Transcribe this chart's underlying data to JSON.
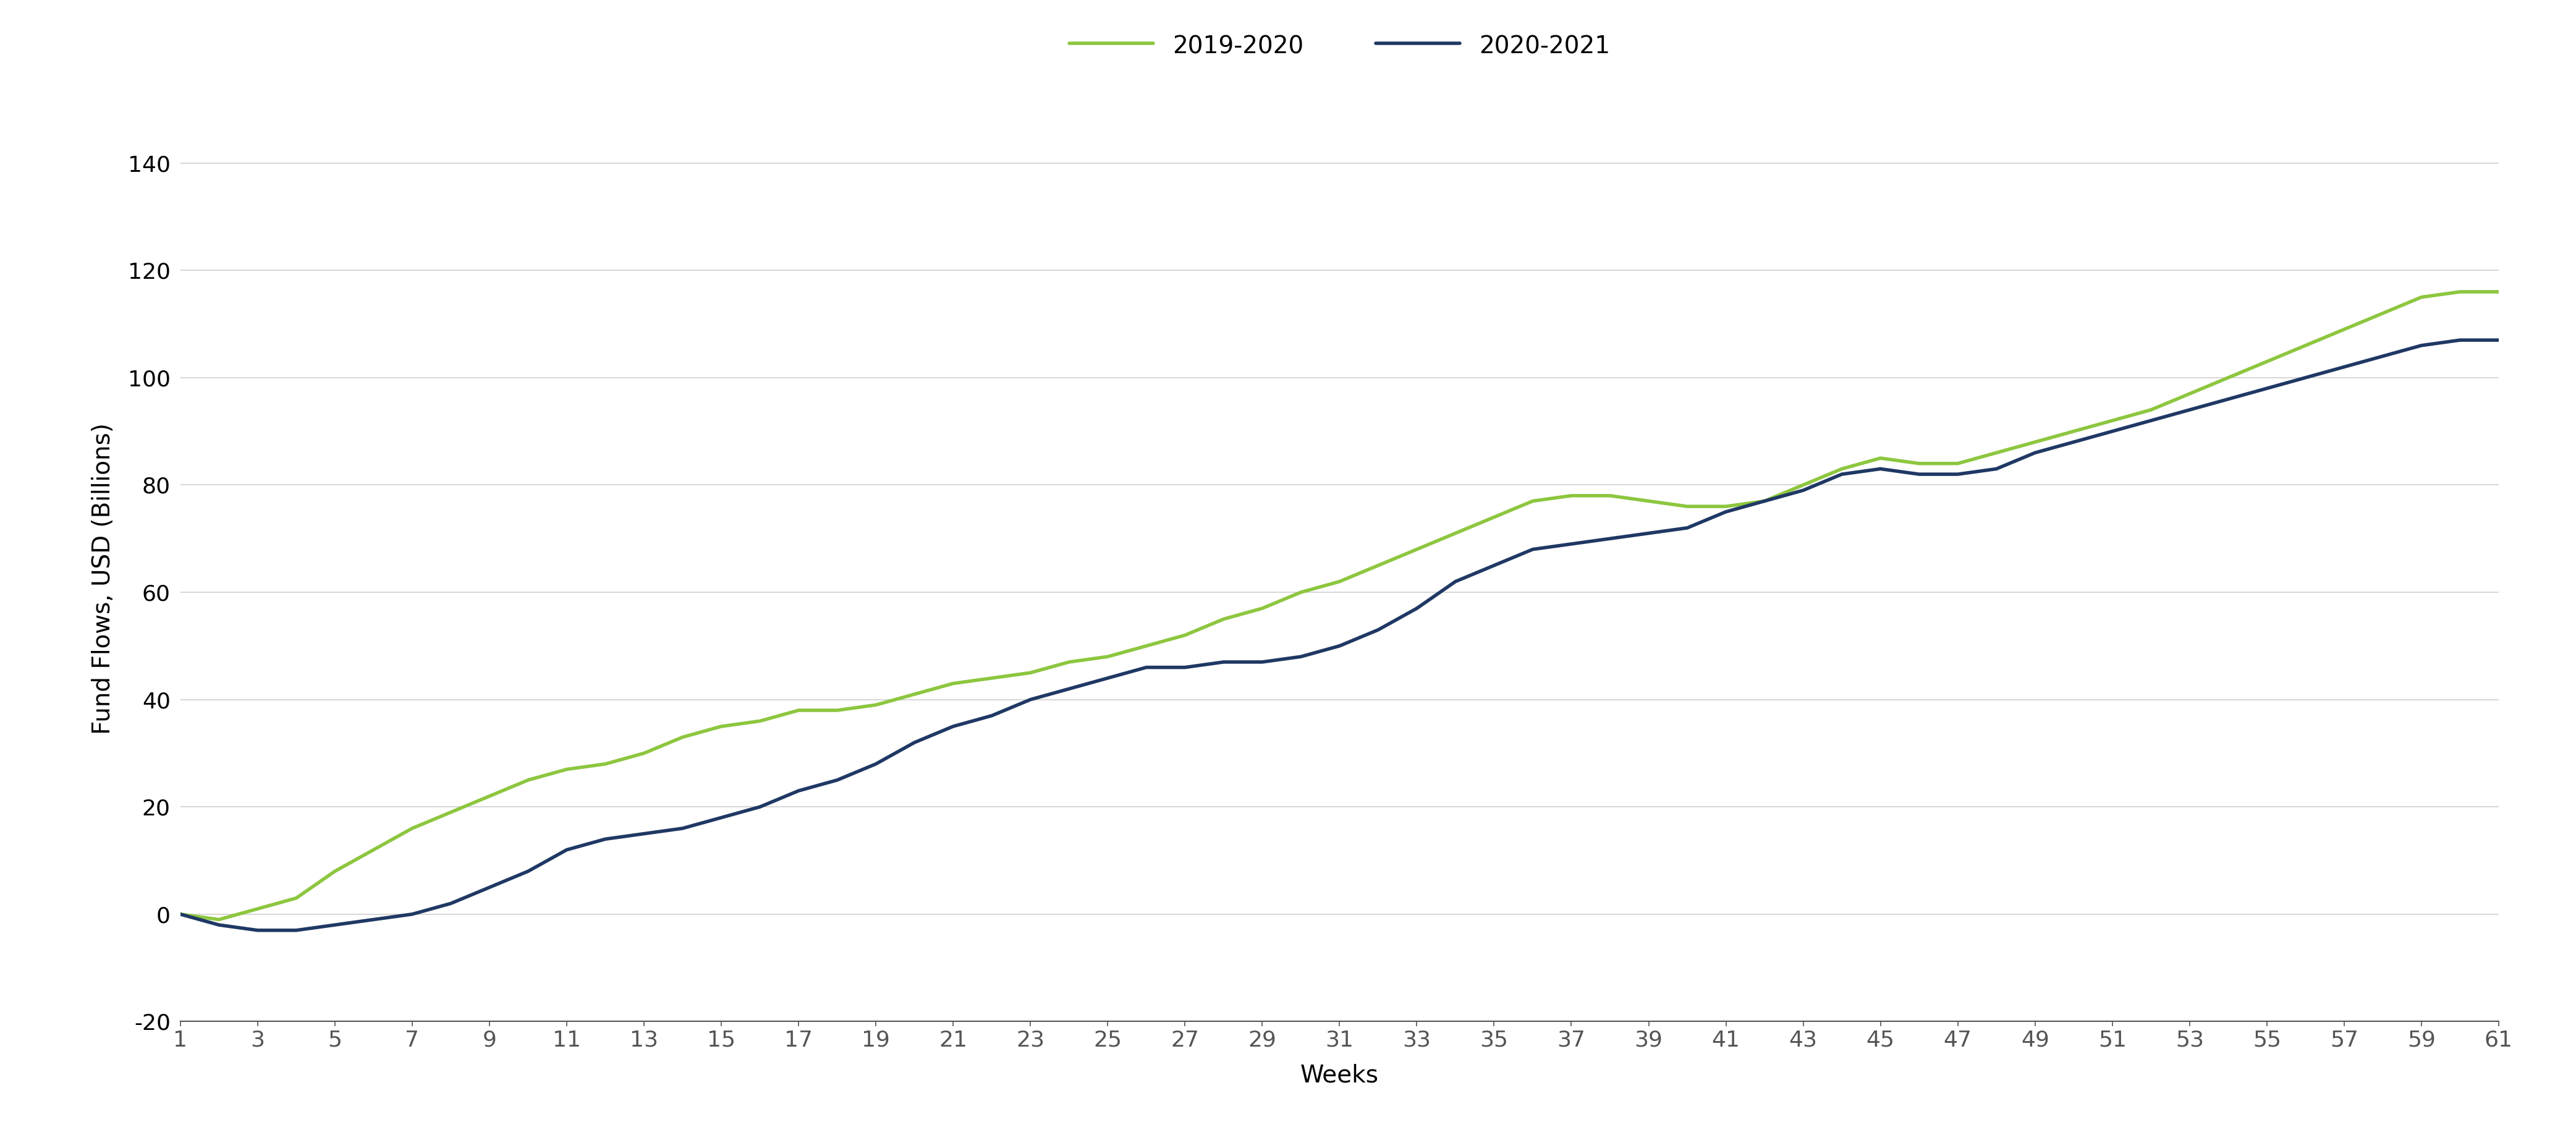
{
  "series_2019_2020": [
    0,
    -1,
    1,
    3,
    8,
    12,
    16,
    19,
    22,
    25,
    27,
    28,
    30,
    33,
    35,
    36,
    38,
    38,
    39,
    41,
    43,
    44,
    45,
    47,
    48,
    50,
    52,
    55,
    57,
    60,
    62,
    65,
    68,
    71,
    74,
    77,
    78,
    78,
    77,
    76,
    76,
    77,
    80,
    83,
    85,
    84,
    84,
    86,
    88,
    90,
    92,
    94,
    97,
    100,
    103,
    106,
    109,
    112,
    115,
    116,
    116
  ],
  "series_2020_2021": [
    0,
    -2,
    -3,
    -3,
    -2,
    -1,
    0,
    2,
    5,
    8,
    12,
    14,
    15,
    16,
    18,
    20,
    23,
    25,
    28,
    32,
    35,
    37,
    40,
    42,
    44,
    46,
    46,
    47,
    47,
    48,
    50,
    53,
    57,
    62,
    65,
    68,
    69,
    70,
    71,
    72,
    75,
    77,
    79,
    82,
    83,
    82,
    82,
    83,
    86,
    88,
    90,
    92,
    94,
    96,
    98,
    100,
    102,
    104,
    106,
    107,
    107
  ],
  "weeks": [
    1,
    2,
    3,
    4,
    5,
    6,
    7,
    8,
    9,
    10,
    11,
    12,
    13,
    14,
    15,
    16,
    17,
    18,
    19,
    20,
    21,
    22,
    23,
    24,
    25,
    26,
    27,
    28,
    29,
    30,
    31,
    32,
    33,
    34,
    35,
    36,
    37,
    38,
    39,
    40,
    41,
    42,
    43,
    44,
    45,
    46,
    47,
    48,
    49,
    50,
    51,
    52,
    53,
    54,
    55,
    56,
    57,
    58,
    59,
    60,
    61
  ],
  "xtick_labels": [
    "1",
    "3",
    "5",
    "7",
    "9",
    "11",
    "13",
    "15",
    "17",
    "19",
    "21",
    "23",
    "25",
    "27",
    "29",
    "31",
    "33",
    "35",
    "37",
    "39",
    "41",
    "43",
    "45",
    "47",
    "49",
    "51",
    "53",
    "55",
    "57",
    "59",
    "61"
  ],
  "xtick_positions": [
    1,
    3,
    5,
    7,
    9,
    11,
    13,
    15,
    17,
    19,
    21,
    23,
    25,
    27,
    29,
    31,
    33,
    35,
    37,
    39,
    41,
    43,
    45,
    47,
    49,
    51,
    53,
    55,
    57,
    59,
    61
  ],
  "color_2019_2020": "#8dc63f",
  "color_2020_2021": "#1f3864",
  "ylabel": "Fund Flows, USD (Billions)",
  "xlabel": "Weeks",
  "legend_label_1": "2019-2020",
  "legend_label_2": "2020-2021",
  "ylim": [
    -20,
    145
  ],
  "yticks": [
    -20,
    0,
    20,
    40,
    60,
    80,
    100,
    120,
    140
  ],
  "background_color": "#ffffff",
  "linewidth": 4.0,
  "axis_fontsize": 28,
  "tick_fontsize": 26,
  "legend_fontsize": 28,
  "grid_color": "#d0d0d0",
  "spine_color": "#555555"
}
